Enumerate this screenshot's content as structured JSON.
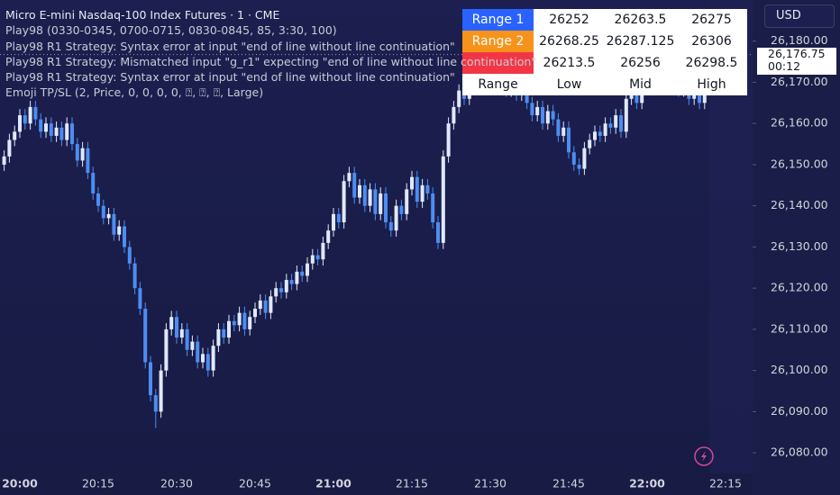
{
  "chart_data": {
    "type": "candlestick",
    "title": "Micro E-mini Nasdaq-100 Index Futures · 1 · CME",
    "indicators": [
      "Play98 (0330-0345, 0700-0715, 0830-0845, 85, 3:30, 100)",
      "Play98 R1 Strategy: Syntax error at input \"end of line without line continuation\"",
      "Play98 R1 Strategy: Mismatched input \"g_r1\" expecting \"end of line without line continuation\"",
      "Play98 R1 Strategy: Syntax error at input \"end of line without line continuation\"",
      "Emoji TP/SL (2, Price, 0, 0, 0, 0, ⍰, ⍰, ⍰, Large)"
    ],
    "currency": "USD",
    "up_color": "#dfe9ff",
    "down_color": "#4d8df2",
    "categories": [
      null,
      null,
      null,
      "20:00",
      null,
      null,
      null,
      null,
      null,
      null,
      null,
      null,
      null,
      null,
      null,
      null,
      null,
      null,
      "20:15",
      null,
      null,
      null,
      null,
      null,
      null,
      null,
      null,
      null,
      null,
      null,
      null,
      null,
      null,
      "20:30",
      null,
      null,
      null,
      null,
      null,
      null,
      null,
      null,
      null,
      null,
      null,
      null,
      null,
      null,
      "20:45",
      null,
      null,
      null,
      null,
      null,
      null,
      null,
      null,
      null,
      null,
      null,
      null,
      null,
      null,
      "21:00",
      null,
      null,
      null,
      null,
      null,
      null,
      null,
      null,
      null,
      null,
      null,
      null,
      null,
      null,
      "21:15",
      null,
      null,
      null,
      null,
      null,
      null,
      null,
      null,
      null,
      null,
      null,
      null,
      null,
      null,
      "21:30",
      null,
      null,
      null,
      null,
      null,
      null,
      null,
      null,
      null,
      null,
      null,
      null,
      null,
      null,
      "21:45",
      null,
      null,
      null,
      null,
      null,
      null,
      null,
      null,
      null,
      null,
      null,
      null,
      null,
      null,
      "22:00",
      null,
      null,
      null,
      null,
      null,
      null,
      null,
      null,
      null,
      null,
      null,
      null,
      null,
      null,
      "22:15"
    ],
    "open": [
      26150,
      26152,
      26156,
      26158,
      26162,
      26160,
      26164,
      26161,
      26158,
      26160,
      26157,
      26159,
      26156,
      26160,
      26155,
      26151,
      26154,
      26148,
      26143,
      26140,
      26137,
      26138,
      26133,
      26135,
      26130,
      26126,
      26120,
      26115,
      26102,
      26094,
      26090,
      26100,
      26110,
      26113,
      26108,
      26110,
      26105,
      26107,
      26102,
      26104,
      26100,
      26106,
      26110,
      26108,
      26112,
      26111,
      26114,
      26110,
      26113,
      26115,
      26117,
      26114,
      26118,
      26120,
      26119,
      26122,
      26121,
      26124,
      26123,
      26126,
      26128,
      26127,
      26131,
      26134,
      26138,
      26136,
      26146,
      26148,
      26142,
      26145,
      26140,
      26144,
      26138,
      26143,
      26136,
      26134,
      26140,
      26138,
      26144,
      26147,
      26141,
      26145,
      26143,
      26136,
      26131,
      26152,
      26160,
      26164,
      26168,
      26166,
      26171,
      26170,
      26173,
      26172,
      26174,
      26170,
      26173,
      26168,
      26171,
      26167,
      26169,
      26165,
      26162,
      26164,
      26160,
      26163,
      26161,
      26157,
      26159,
      26153,
      26150,
      26149,
      26154,
      26156,
      26158,
      26157,
      26160,
      26159,
      26162,
      26158,
      26166,
      26168,
      26165,
      26170,
      26172,
      26175,
      26171,
      26174,
      26170,
      26173,
      26168,
      26171,
      26166,
      26169,
      26165,
      null,
      null,
      null,
      null
    ],
    "high": [
      26153.5,
      26157.5,
      26159.5,
      26163.5,
      26163.5,
      26165.5,
      26165.5,
      26162.5,
      26161.5,
      26161.5,
      26160.5,
      26160.5,
      26161.5,
      26161.5,
      26156.5,
      26155.5,
      26155.5,
      26149.5,
      26144.5,
      26141.5,
      26139.5,
      26139.5,
      26136.5,
      26136.5,
      26131.5,
      26127.5,
      26121.5,
      26116.5,
      26103.5,
      26095.5,
      26101.5,
      26111.5,
      26114.5,
      26114.5,
      26111.5,
      26111.5,
      26108.5,
      26108.5,
      26105.5,
      26105.5,
      26107.5,
      26111.5,
      26111.5,
      26113.5,
      26113.5,
      26115.5,
      26115.5,
      26114.5,
      26116.5,
      26118.5,
      26118.5,
      26119.5,
      26121.5,
      26121.5,
      26123.5,
      26123.5,
      26125.5,
      26125.5,
      26127.5,
      26129.5,
      26129.5,
      26132.5,
      26135.5,
      26139.5,
      26139.5,
      26147.5,
      26149.5,
      26149.5,
      26146.5,
      26146.5,
      26145.5,
      26145.5,
      26144.5,
      26144.5,
      26137.5,
      26141.5,
      26141.5,
      26145.5,
      26148.5,
      26148.5,
      26146.5,
      26146.5,
      26144.5,
      26137.5,
      26153.5,
      26161.5,
      26165.5,
      26169.5,
      26169.5,
      26172.5,
      26172.5,
      26174.5,
      26174.5,
      26175.5,
      26175.5,
      26174.5,
      26174.5,
      26172.5,
      26172.5,
      26170.5,
      26170.5,
      26166.5,
      26165.5,
      26165.5,
      26164.5,
      26164.5,
      26162.5,
      26160.5,
      26160.5,
      26154.5,
      26151.5,
      26155.5,
      26157.5,
      26159.5,
      26159.5,
      26161.5,
      26161.5,
      26163.5,
      26163.5,
      26167.5,
      26169.5,
      26169.5,
      26171.5,
      26173.5,
      26176.5,
      26176.5,
      26175.5,
      26175.5,
      26174.5,
      26174.5,
      26172.5,
      26172.5,
      26170.5,
      26170.5,
      26178.25,
      null,
      null,
      null,
      null
    ],
    "low": [
      26148.5,
      26150.5,
      26154.5,
      26156.5,
      26158.5,
      26158.5,
      26159.5,
      26156.5,
      26156.5,
      26155.5,
      26155.5,
      26154.5,
      26154.5,
      26153.5,
      26149.5,
      26149.5,
      26146.5,
      26141.5,
      26138.5,
      26135.5,
      26135.5,
      26131.5,
      26131.5,
      26128.5,
      26124.5,
      26118.5,
      26113.5,
      26100.5,
      26092.5,
      26086,
      26088.5,
      26098.5,
      26108.5,
      26106.5,
      26106.5,
      26103.5,
      26103.5,
      26100.5,
      26100.5,
      26098.5,
      26098.5,
      26104.5,
      26106.5,
      26106.5,
      26109.5,
      26109.5,
      26108.5,
      26108.5,
      26111.5,
      26113.5,
      26112.5,
      26112.5,
      26116.5,
      26117.5,
      26117.5,
      26119.5,
      26119.5,
      26121.5,
      26121.5,
      26124.5,
      26125.5,
      26125.5,
      26129.5,
      26132.5,
      26134.5,
      26134.5,
      26144.5,
      26140.5,
      26140.5,
      26138.5,
      26138.5,
      26136.5,
      26136.5,
      26134.5,
      26132.5,
      26132.5,
      26136.5,
      26136.5,
      26142.5,
      26139.5,
      26139.5,
      26141.5,
      26134.5,
      26129.5,
      26129.5,
      26150.5,
      26158.5,
      26162.5,
      26164.5,
      26164.5,
      26168.5,
      26168.5,
      26170.5,
      26170.5,
      26168.5,
      26168.5,
      26166.5,
      26166.5,
      26165.5,
      26165.5,
      26163.5,
      26160.5,
      26160.5,
      26158.5,
      26158.5,
      26159.5,
      26155.5,
      26155.5,
      26151.5,
      26148.5,
      26147.5,
      26147.5,
      26152.5,
      26154.5,
      26155.5,
      26155.5,
      26157.5,
      26157.5,
      26156.5,
      26156.5,
      26164.5,
      26163.5,
      26163.5,
      26168.5,
      26170.5,
      26169.5,
      26169.5,
      26168.5,
      26168.5,
      26166.5,
      26166.5,
      26164.5,
      26164.5,
      26163.5,
      26163.5,
      null,
      null,
      null,
      null
    ],
    "close": [
      26152,
      26156,
      26158,
      26162,
      26160,
      26164,
      26161,
      26158,
      26160,
      26157,
      26159,
      26156,
      26160,
      26155,
      26151,
      26154,
      26148,
      26143,
      26140,
      26137,
      26138,
      26133,
      26135,
      26130,
      26126,
      26120,
      26115,
      26102,
      26094,
      26090,
      26100,
      26110,
      26113,
      26108,
      26110,
      26105,
      26107,
      26102,
      26104,
      26100,
      26106,
      26110,
      26108,
      26112,
      26111,
      26114,
      26110,
      26113,
      26115,
      26117,
      26114,
      26118,
      26120,
      26119,
      26122,
      26121,
      26124,
      26123,
      26126,
      26128,
      26127,
      26131,
      26134,
      26138,
      26136,
      26146,
      26148,
      26142,
      26145,
      26140,
      26144,
      26138,
      26143,
      26136,
      26134,
      26140,
      26138,
      26144,
      26147,
      26141,
      26145,
      26143,
      26136,
      26131,
      26152,
      26160,
      26164,
      26168,
      26166,
      26171,
      26170,
      26173,
      26172,
      26174,
      26170,
      26173,
      26168,
      26171,
      26167,
      26169,
      26165,
      26162,
      26164,
      26160,
      26163,
      26161,
      26157,
      26159,
      26153,
      26150,
      26149,
      26154,
      26156,
      26158,
      26157,
      26160,
      26159,
      26162,
      26158,
      26166,
      26168,
      26165,
      26170,
      26172,
      26175,
      26171,
      26174,
      26170,
      26173,
      26168,
      26171,
      26166,
      26169,
      26165,
      26176.75,
      null,
      null,
      null,
      null
    ],
    "last_price": {
      "value": 26176.75,
      "label": "26,176.75"
    },
    "countdown": "00:12",
    "ylim": [
      26075,
      26190
    ],
    "yticks": [
      {
        "value": 26080,
        "label": "26,080.00"
      },
      {
        "value": 26090,
        "label": "26,090.00"
      },
      {
        "value": 26100,
        "label": "26,100.00"
      },
      {
        "value": 26110,
        "label": "26,110.00"
      },
      {
        "value": 26120,
        "label": "26,120.00"
      },
      {
        "value": 26130,
        "label": "26,130.00"
      },
      {
        "value": 26140,
        "label": "26,140.00"
      },
      {
        "value": 26150,
        "label": "26,150.00"
      },
      {
        "value": 26160,
        "label": "26,160.00"
      },
      {
        "value": 26170,
        "label": "26,170.00"
      },
      {
        "value": 26180,
        "label": "26,180.00"
      }
    ],
    "grid": false
  },
  "table": {
    "header": [
      "Range",
      "Low",
      "Mid",
      "High"
    ],
    "rows": [
      [
        "Range 1",
        "26252",
        "26263.5",
        "26275"
      ],
      [
        "Range 2",
        "26268.25",
        "26287.125",
        "26306"
      ],
      [
        null,
        "26213.5",
        "26256",
        "26298.5"
      ]
    ],
    "row_colors": [
      "#2962ff",
      "#f7931a",
      "#f23645"
    ]
  }
}
